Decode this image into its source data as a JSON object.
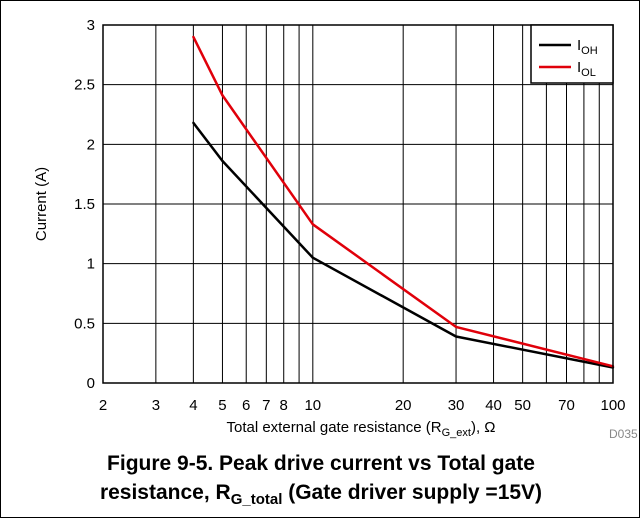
{
  "chart_data": {
    "type": "line",
    "x_scale": "log",
    "xlim": [
      2,
      100
    ],
    "ylim": [
      0,
      3
    ],
    "x_ticks": [
      2,
      3,
      4,
      5,
      6,
      7,
      8,
      10,
      20,
      30,
      40,
      50,
      70,
      100
    ],
    "x_tick_labels": [
      "2",
      "3",
      "4",
      "5",
      "6",
      "7",
      "8",
      "10",
      "20",
      "30",
      "40",
      "50",
      "70",
      "100"
    ],
    "x_grid": [
      2,
      3,
      4,
      5,
      6,
      7,
      8,
      9,
      10,
      20,
      30,
      40,
      50,
      60,
      70,
      80,
      90,
      100
    ],
    "y_ticks": [
      0,
      0.5,
      1,
      1.5,
      2,
      2.5,
      3
    ],
    "y_tick_labels": [
      "0",
      "0.5",
      "1",
      "1.5",
      "2",
      "2.5",
      "3"
    ],
    "grid": true,
    "xlabel_main": "Total external gate resistance (R",
    "xlabel_sub": "G_ext",
    "xlabel_end": "), Ω",
    "ylabel": "Current (A)",
    "legend_position": "top-right",
    "series": [
      {
        "name_main": "I",
        "name_sub": "OH",
        "color": "#000000",
        "x": [
          4,
          5,
          10,
          30,
          100
        ],
        "y": [
          2.18,
          1.86,
          1.05,
          0.39,
          0.13
        ]
      },
      {
        "name_main": "I",
        "name_sub": "OL",
        "color": "#e0000a",
        "x": [
          4,
          5,
          10,
          30,
          100
        ],
        "y": [
          2.9,
          2.41,
          1.33,
          0.47,
          0.14
        ]
      }
    ]
  },
  "figure_code": "D035",
  "caption": {
    "line1": "Figure 9-5. Peak drive current vs Total gate",
    "line2_main": "resistance, R",
    "line2_sub": "G_total",
    "line2_end": " (Gate driver supply =15V)"
  }
}
